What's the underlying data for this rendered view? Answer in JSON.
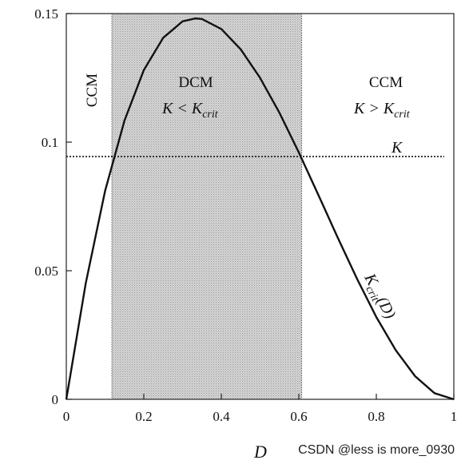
{
  "chart_data": {
    "type": "line",
    "title": "",
    "xlabel": "D",
    "ylabel": "",
    "xlim": [
      0,
      1
    ],
    "ylim": [
      0,
      0.15
    ],
    "x_ticks": [
      "0",
      "0.2",
      "0.4",
      "0.6",
      "0.8",
      "1"
    ],
    "y_ticks": [
      "0",
      "0.05",
      "0.1",
      "0.15"
    ],
    "x_tick_values": [
      0,
      0.2,
      0.4,
      0.6,
      0.8,
      1
    ],
    "y_tick_values": [
      0,
      0.05,
      0.1,
      0.15
    ],
    "grid": false,
    "series": [
      {
        "name": "Kcrit(D)",
        "label_main": "K",
        "label_sub": "crit",
        "label_tail": "(D)",
        "x": [
          0,
          0.05,
          0.1,
          0.15,
          0.2,
          0.25,
          0.3,
          0.333,
          0.35,
          0.4,
          0.45,
          0.5,
          0.55,
          0.6,
          0.65,
          0.7,
          0.75,
          0.8,
          0.85,
          0.9,
          0.95,
          1
        ],
        "y": [
          0,
          0.0451,
          0.081,
          0.1084,
          0.128,
          0.1406,
          0.147,
          0.1481,
          0.1479,
          0.144,
          0.1361,
          0.125,
          0.1114,
          0.096,
          0.0796,
          0.063,
          0.0469,
          0.032,
          0.0191,
          0.009,
          0.0024,
          0
        ]
      }
    ],
    "k_line": {
      "label": "K",
      "value": 0.0944
    },
    "dcm_region": {
      "x_start": 0.1176,
      "x_end": 0.6074
    },
    "annotations": {
      "ccm_left": "CCM",
      "dcm_title": "DCM",
      "dcm_condition_main": "K < K",
      "dcm_condition_sub": "crit",
      "ccm_right_title": "CCM",
      "ccm_right_condition_main": "K > K",
      "ccm_right_condition_sub": "crit"
    }
  },
  "watermark": "CSDN @less is more_0930"
}
